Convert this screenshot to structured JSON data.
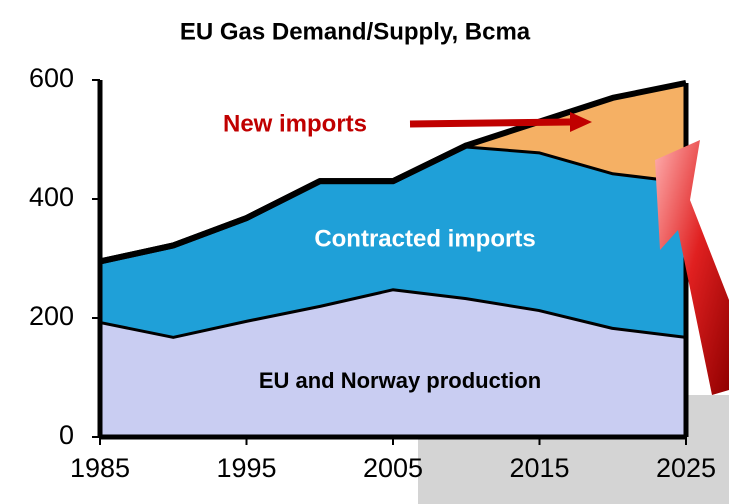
{
  "chart_data": {
    "type": "stacked-area",
    "title": "EU Gas Demand/Supply, Bcma",
    "x": [
      1985,
      1990,
      1995,
      2000,
      2005,
      2010,
      2015,
      2020,
      2025
    ],
    "series": [
      {
        "name": "EU and Norway production",
        "color": "#c9cdf2",
        "values": [
          195,
          170,
          197,
          222,
          250,
          235,
          215,
          185,
          170
        ]
      },
      {
        "name": "Contracted imports",
        "color": "#1fa0d8",
        "values": [
          100,
          152,
          171,
          208,
          180,
          255,
          265,
          260,
          260
        ]
      },
      {
        "name": "New imports",
        "color": "#f5b064",
        "values": [
          0,
          0,
          0,
          0,
          0,
          0,
          50,
          125,
          165
        ]
      }
    ],
    "xlim": [
      1985,
      2025
    ],
    "xticks": [
      1985,
      1995,
      2005,
      2015,
      2025
    ],
    "ylim": [
      0,
      600
    ],
    "yticks": [
      0,
      200,
      400,
      600
    ]
  }
}
